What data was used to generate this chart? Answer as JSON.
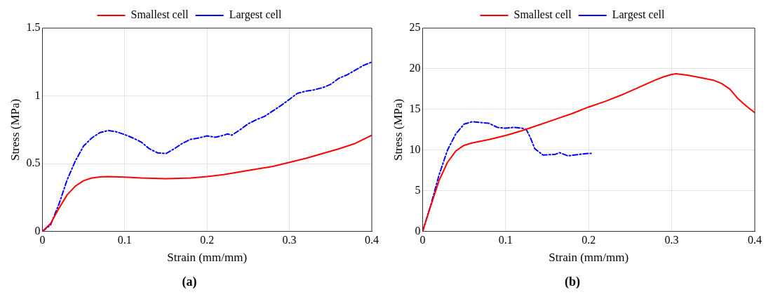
{
  "chart_data": [
    {
      "type": "line",
      "title": "(a)",
      "xlabel": "Strain (mm/mm)",
      "ylabel": "Stress (MPa)",
      "xlim": [
        0,
        0.4
      ],
      "xticks": [
        0,
        0.1,
        0.2,
        0.3,
        0.4
      ],
      "ylim": [
        0,
        1.5
      ],
      "yticks": [
        0,
        0.5,
        1,
        1.5
      ],
      "grid": true,
      "legend": "top",
      "marker": "none",
      "series": [
        {
          "name": "Smallest cell",
          "color": "#ff0000",
          "line_style": "solid",
          "x": [
            0,
            0.01,
            0.02,
            0.03,
            0.04,
            0.05,
            0.06,
            0.07,
            0.08,
            0.1,
            0.12,
            0.15,
            0.18,
            0.2,
            0.22,
            0.25,
            0.28,
            0.3,
            0.32,
            0.34,
            0.36,
            0.38,
            0.4
          ],
          "values": [
            0,
            0.06,
            0.17,
            0.27,
            0.335,
            0.375,
            0.395,
            0.403,
            0.405,
            0.402,
            0.395,
            0.39,
            0.395,
            0.405,
            0.42,
            0.45,
            0.48,
            0.51,
            0.54,
            0.575,
            0.61,
            0.65,
            0.71
          ]
        },
        {
          "name": "Largest cell",
          "color": "#0000ff",
          "line_style": "dashed",
          "x": [
            0,
            0.01,
            0.02,
            0.03,
            0.04,
            0.05,
            0.06,
            0.07,
            0.08,
            0.09,
            0.1,
            0.11,
            0.12,
            0.13,
            0.14,
            0.15,
            0.16,
            0.17,
            0.18,
            0.19,
            0.2,
            0.21,
            0.22,
            0.225,
            0.23,
            0.24,
            0.25,
            0.26,
            0.27,
            0.28,
            0.29,
            0.3,
            0.31,
            0.32,
            0.33,
            0.34,
            0.35,
            0.36,
            0.37,
            0.38,
            0.39,
            0.4
          ],
          "values": [
            0,
            0.05,
            0.2,
            0.38,
            0.52,
            0.63,
            0.69,
            0.73,
            0.745,
            0.735,
            0.715,
            0.69,
            0.66,
            0.61,
            0.58,
            0.575,
            0.61,
            0.65,
            0.68,
            0.69,
            0.705,
            0.695,
            0.71,
            0.72,
            0.71,
            0.75,
            0.795,
            0.825,
            0.85,
            0.89,
            0.93,
            0.975,
            1.02,
            1.035,
            1.045,
            1.06,
            1.085,
            1.13,
            1.155,
            1.19,
            1.225,
            1.25
          ]
        }
      ]
    },
    {
      "type": "line",
      "title": "(b)",
      "xlabel": "Strain (mm/mm)",
      "ylabel": "Stress (MPa)",
      "xlim": [
        0,
        0.4
      ],
      "xticks": [
        0,
        0.1,
        0.2,
        0.3,
        0.4
      ],
      "ylim": [
        0,
        25
      ],
      "yticks": [
        0,
        5,
        10,
        15,
        20,
        25
      ],
      "grid": true,
      "legend": "top",
      "marker": "none",
      "series": [
        {
          "name": "Smallest cell",
          "color": "#ff0000",
          "line_style": "solid",
          "x": [
            0,
            0.01,
            0.02,
            0.03,
            0.04,
            0.05,
            0.06,
            0.08,
            0.1,
            0.12,
            0.14,
            0.16,
            0.18,
            0.2,
            0.22,
            0.24,
            0.26,
            0.28,
            0.29,
            0.3,
            0.305,
            0.32,
            0.33,
            0.35,
            0.36,
            0.37,
            0.38,
            0.39,
            0.4
          ],
          "values": [
            0,
            3.2,
            6.3,
            8.5,
            9.9,
            10.6,
            10.9,
            11.3,
            11.8,
            12.4,
            13.1,
            13.8,
            14.5,
            15.3,
            16,
            16.8,
            17.7,
            18.6,
            19,
            19.3,
            19.4,
            19.2,
            19,
            18.6,
            18.2,
            17.5,
            16.3,
            15.4,
            14.6
          ]
        },
        {
          "name": "Largest cell",
          "color": "#0000ff",
          "line_style": "dashed",
          "x": [
            0,
            0.01,
            0.02,
            0.03,
            0.04,
            0.05,
            0.06,
            0.07,
            0.08,
            0.09,
            0.1,
            0.11,
            0.12,
            0.125,
            0.13,
            0.135,
            0.14,
            0.145,
            0.16,
            0.165,
            0.175,
            0.19,
            0.2,
            0.203
          ],
          "values": [
            0,
            3.3,
            7,
            10,
            12,
            13.2,
            13.5,
            13.4,
            13.3,
            12.8,
            12.7,
            12.8,
            12.7,
            12.5,
            11.5,
            10.2,
            9.8,
            9.4,
            9.5,
            9.7,
            9.3,
            9.5,
            9.6,
            9.6
          ]
        }
      ]
    }
  ]
}
